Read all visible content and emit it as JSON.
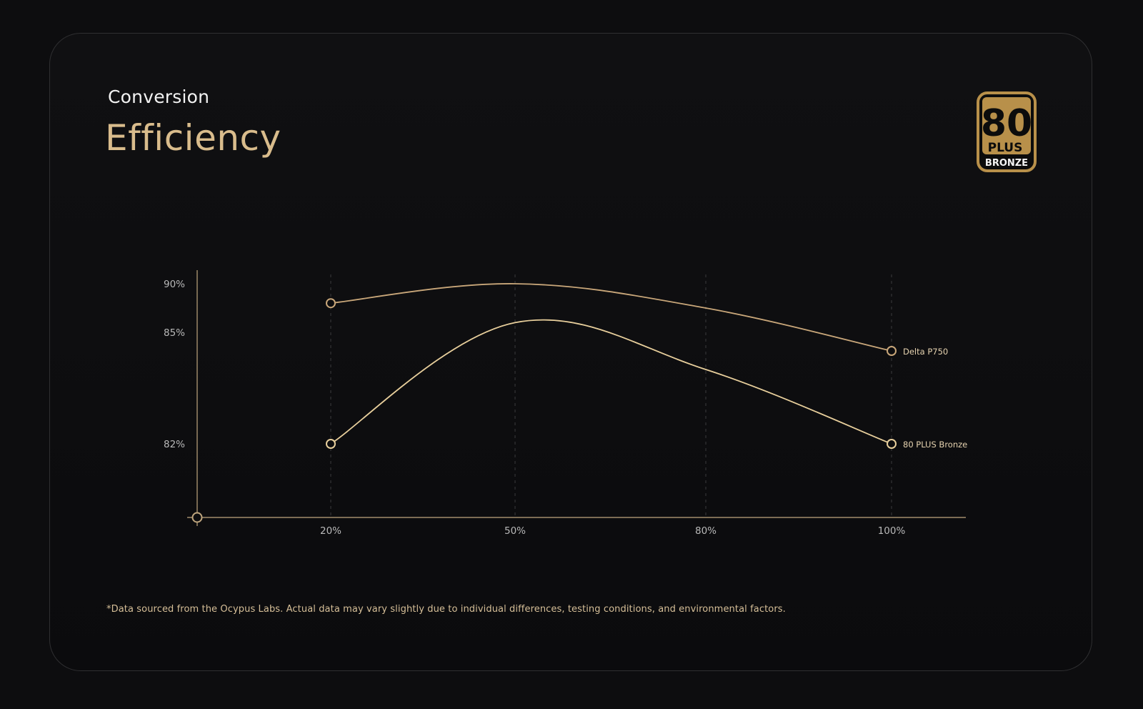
{
  "header": {
    "eyebrow": "Conversion",
    "title": "Efficiency"
  },
  "badge": {
    "number": "80",
    "plus": "PLUS",
    "tier": "BRONZE",
    "icon": "80-plus-bronze-badge-icon"
  },
  "colors": {
    "accent": "#d9bc8c",
    "series_primary": "#c9a77a",
    "series_secondary": "#e8cf9c",
    "axis": "#bfa67e",
    "grid": "#3a3a3c",
    "tick_text": "#b9b9b9",
    "badge_gold": "#b8904a"
  },
  "chart_data": {
    "type": "line",
    "x": [
      "20%",
      "50%",
      "80%",
      "100%"
    ],
    "x_values": [
      20,
      50,
      80,
      100
    ],
    "y_ticks": [
      "90%",
      "85%",
      "82%"
    ],
    "y_tick_values": [
      90,
      85,
      82
    ],
    "series": [
      {
        "name": "Delta P750",
        "values": [
          88.0,
          90.0,
          87.5,
          84.5
        ],
        "markers_at": [
          0,
          3
        ]
      },
      {
        "name": "80 PLUS Bronze",
        "values": [
          82.0,
          86.0,
          84.0,
          82.0
        ],
        "markers_at": [
          0,
          3
        ]
      }
    ],
    "grid": "vertical-dashed",
    "legend": "inline-right"
  },
  "footnote": "*Data sourced from the Ocypus Labs. Actual data may vary slightly due to individual differences, testing conditions, and environmental factors."
}
